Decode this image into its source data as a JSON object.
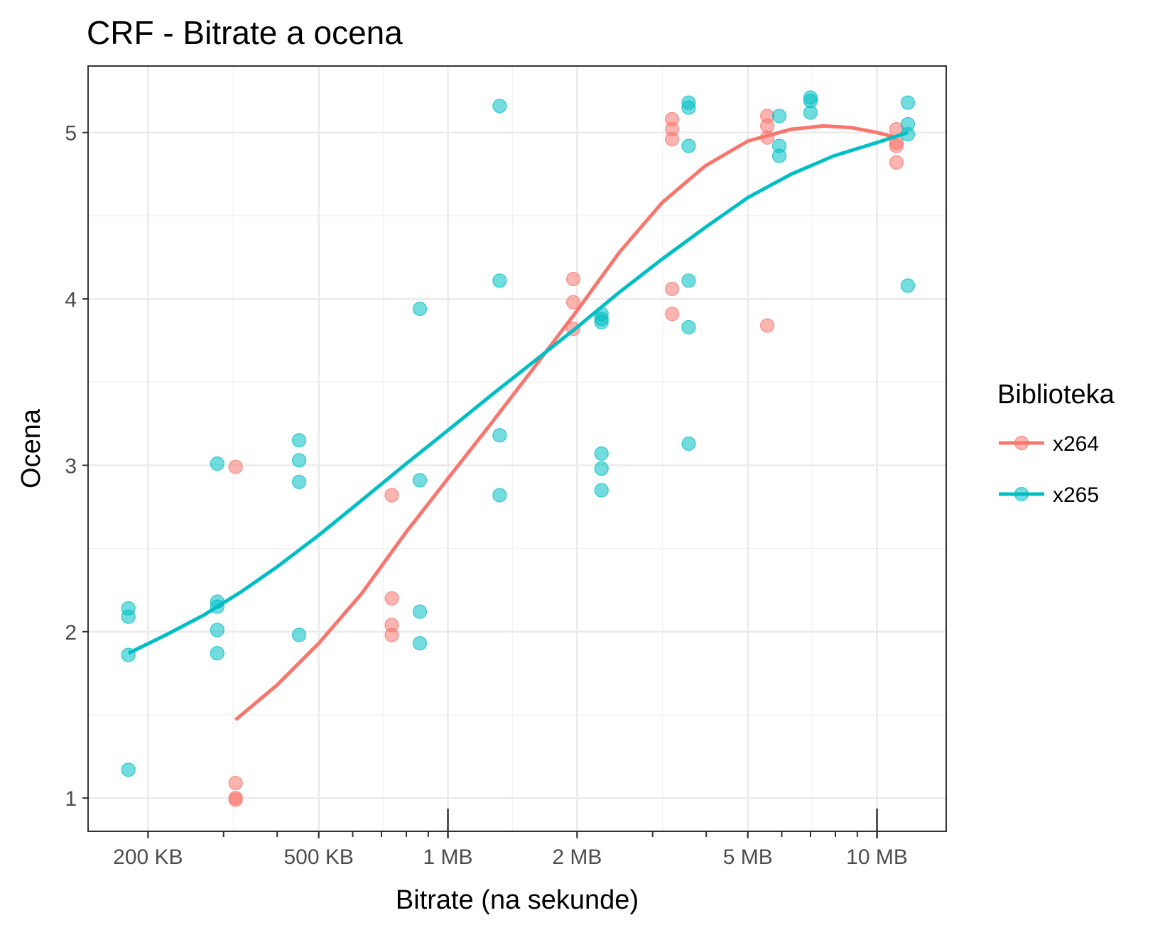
{
  "chart_data": {
    "type": "scatter",
    "title": "CRF - Bitrate a ocena",
    "xlabel": "Bitrate  (na sekunde)",
    "ylabel": "Ocena",
    "x_scale": "log10",
    "x_unit": "bytes",
    "xlim": [
      145000,
      14500000
    ],
    "ylim": [
      0.8,
      5.4
    ],
    "x_ticks": [
      {
        "value": 200000,
        "label": "200 KB"
      },
      {
        "value": 500000,
        "label": "500 KB"
      },
      {
        "value": 1000000,
        "label": "1 MB"
      },
      {
        "value": 2000000,
        "label": "2 MB"
      },
      {
        "value": 5000000,
        "label": "5 MB"
      },
      {
        "value": 10000000,
        "label": "10 MB"
      }
    ],
    "y_ticks": [
      {
        "value": 1,
        "label": "1"
      },
      {
        "value": 2,
        "label": "2"
      },
      {
        "value": 3,
        "label": "3"
      },
      {
        "value": 4,
        "label": "4"
      },
      {
        "value": 5,
        "label": "5"
      }
    ],
    "grid": true,
    "legend": {
      "title": "Biblioteka",
      "position": "right"
    },
    "series": [
      {
        "name": "x264",
        "color": "#F8766D",
        "points": [
          [
            320000,
            2.99
          ],
          [
            320000,
            1.09
          ],
          [
            320000,
            1.0
          ],
          [
            320000,
            0.99
          ],
          [
            740000,
            2.82
          ],
          [
            740000,
            2.2
          ],
          [
            740000,
            2.04
          ],
          [
            740000,
            1.98
          ],
          [
            1960000,
            4.12
          ],
          [
            1960000,
            3.98
          ],
          [
            1960000,
            3.82
          ],
          [
            3330000,
            5.08
          ],
          [
            3330000,
            5.02
          ],
          [
            3330000,
            4.96
          ],
          [
            3330000,
            4.06
          ],
          [
            3330000,
            3.91
          ],
          [
            5550000,
            5.1
          ],
          [
            5550000,
            5.04
          ],
          [
            5550000,
            4.97
          ],
          [
            5550000,
            3.84
          ],
          [
            11100000,
            5.02
          ],
          [
            11100000,
            4.94
          ],
          [
            11100000,
            4.92
          ],
          [
            11100000,
            4.82
          ]
        ],
        "smooth": [
          [
            320000,
            1.47
          ],
          [
            400000,
            1.68
          ],
          [
            500000,
            1.93
          ],
          [
            630000,
            2.23
          ],
          [
            800000,
            2.6
          ],
          [
            1000000,
            2.92
          ],
          [
            1260000,
            3.25
          ],
          [
            1580000,
            3.58
          ],
          [
            2000000,
            3.93
          ],
          [
            2510000,
            4.28
          ],
          [
            3160000,
            4.58
          ],
          [
            3980000,
            4.8
          ],
          [
            5010000,
            4.95
          ],
          [
            6310000,
            5.02
          ],
          [
            7500000,
            5.04
          ],
          [
            8700000,
            5.03
          ],
          [
            10000000,
            5.0
          ],
          [
            11100000,
            4.97
          ]
        ]
      },
      {
        "name": "x265",
        "color": "#00BFC4",
        "points": [
          [
            180000,
            2.14
          ],
          [
            180000,
            2.09
          ],
          [
            180000,
            1.86
          ],
          [
            180000,
            1.17
          ],
          [
            290000,
            3.01
          ],
          [
            290000,
            2.18
          ],
          [
            290000,
            2.15
          ],
          [
            290000,
            2.01
          ],
          [
            290000,
            1.87
          ],
          [
            450000,
            3.15
          ],
          [
            450000,
            3.03
          ],
          [
            450000,
            2.9
          ],
          [
            450000,
            1.98
          ],
          [
            860000,
            3.94
          ],
          [
            860000,
            2.91
          ],
          [
            860000,
            2.12
          ],
          [
            860000,
            1.93
          ],
          [
            1320000,
            5.16
          ],
          [
            1320000,
            4.11
          ],
          [
            1320000,
            3.18
          ],
          [
            1320000,
            2.82
          ],
          [
            2280000,
            3.91
          ],
          [
            2280000,
            3.88
          ],
          [
            2280000,
            3.86
          ],
          [
            2280000,
            3.07
          ],
          [
            2280000,
            2.98
          ],
          [
            2280000,
            2.85
          ],
          [
            3640000,
            5.18
          ],
          [
            3640000,
            5.15
          ],
          [
            3640000,
            4.92
          ],
          [
            3640000,
            4.11
          ],
          [
            3640000,
            3.83
          ],
          [
            3640000,
            3.13
          ],
          [
            5920000,
            5.1
          ],
          [
            5920000,
            4.92
          ],
          [
            5920000,
            4.86
          ],
          [
            7000000,
            5.21
          ],
          [
            7000000,
            5.19
          ],
          [
            7000000,
            5.12
          ],
          [
            11800000,
            5.18
          ],
          [
            11800000,
            5.05
          ],
          [
            11800000,
            4.99
          ],
          [
            11800000,
            4.08
          ]
        ],
        "smooth": [
          [
            180000,
            1.87
          ],
          [
            220000,
            1.98
          ],
          [
            270000,
            2.1
          ],
          [
            330000,
            2.24
          ],
          [
            400000,
            2.39
          ],
          [
            500000,
            2.58
          ],
          [
            630000,
            2.79
          ],
          [
            800000,
            3.01
          ],
          [
            1000000,
            3.21
          ],
          [
            1260000,
            3.42
          ],
          [
            1580000,
            3.62
          ],
          [
            2000000,
            3.83
          ],
          [
            2510000,
            4.04
          ],
          [
            3160000,
            4.24
          ],
          [
            3980000,
            4.43
          ],
          [
            5010000,
            4.61
          ],
          [
            6310000,
            4.75
          ],
          [
            7940000,
            4.86
          ],
          [
            10000000,
            4.94
          ],
          [
            11800000,
            5.0
          ]
        ]
      }
    ]
  }
}
